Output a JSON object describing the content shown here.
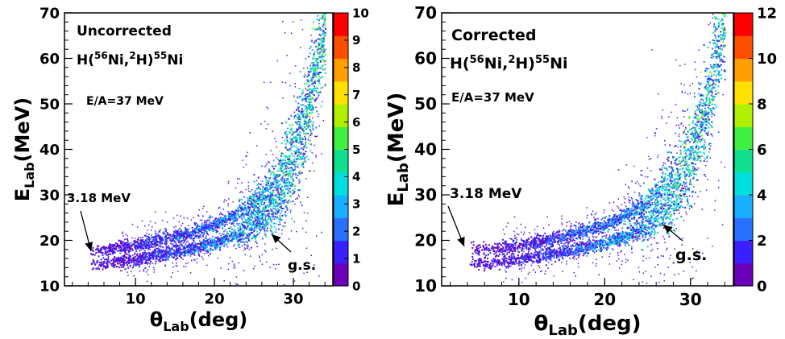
{
  "chart_data": [
    {
      "type": "heatmap",
      "title": "",
      "xlabel": "θLab(deg)",
      "ylabel": "ELab(MeV)",
      "xlabel_parts": {
        "main": "θ",
        "sub": "Lab",
        "rest": "(deg)"
      },
      "ylabel_parts": {
        "main": "E",
        "sub": "Lab",
        "rest": "(MeV)"
      },
      "xlim": [
        1,
        35
      ],
      "ylim": [
        10,
        70
      ],
      "x_ticks": [
        10,
        20,
        30
      ],
      "y_ticks": [
        10,
        20,
        30,
        40,
        50,
        60,
        70
      ],
      "zlim": [
        0,
        10
      ],
      "z_ticks": [
        0,
        1,
        2,
        3,
        4,
        5,
        6,
        7,
        8,
        9,
        10
      ],
      "label": "Uncorrected",
      "reaction": {
        "pre": "H(",
        "m1": "56",
        "t1": "Ni,",
        "m2": "2",
        "t2": "H)",
        "m3": "55",
        "t3": "Ni"
      },
      "energy_label": "E/A=37 MeV",
      "annotations": [
        {
          "text": "3.18 MeV",
          "at_x": 4.5,
          "at_y": 18.5
        },
        {
          "text": "g.s.",
          "at_x": 26.5,
          "at_y": 21.5
        }
      ],
      "bands": [
        {
          "name": "",
          "points": [
            [
              5,
              15
            ],
            [
              10,
              16
            ],
            [
              15,
              17.5
            ],
            [
              20,
              19.5
            ],
            [
              25,
              23
            ],
            [
              28,
              28
            ],
            [
              30,
              36
            ],
            [
              32,
              48
            ],
            [
              33.5,
              62
            ]
          ]
        },
        {
          "name": "",
          "points": [
            [
              5,
              18
            ],
            [
              10,
              19
            ],
            [
              15,
              21
            ],
            [
              20,
              23.5
            ],
            [
              25,
              28
            ],
            [
              28,
              34
            ],
            [
              30,
              42
            ],
            [
              32,
              53
            ],
            [
              33.5,
              66
            ]
          ]
        }
      ],
      "grid": false
    },
    {
      "type": "heatmap",
      "title": "",
      "xlabel": "θLab(deg)",
      "ylabel": "ELab(MeV)",
      "xlabel_parts": {
        "main": "θ",
        "sub": "Lab",
        "rest": "(deg)"
      },
      "ylabel_parts": {
        "main": "E",
        "sub": "Lab",
        "rest": "(MeV)"
      },
      "xlim": [
        1,
        35
      ],
      "ylim": [
        10,
        70
      ],
      "x_ticks": [
        10,
        20,
        30
      ],
      "y_ticks": [
        10,
        20,
        30,
        40,
        50,
        60,
        70
      ],
      "zlim": [
        0,
        12
      ],
      "z_ticks": [
        0,
        2,
        4,
        6,
        8,
        10,
        12
      ],
      "label": "Corrected",
      "reaction": {
        "pre": "H(",
        "m1": "56",
        "t1": "Ni,",
        "m2": "2",
        "t2": "H)",
        "m3": "55",
        "t3": "Ni"
      },
      "energy_label": "E/A=37 MeV",
      "annotations": [
        {
          "text": "3.18 MeV",
          "at_x": 4.5,
          "at_y": 18.5
        },
        {
          "text": "g.s.",
          "at_x": 26.5,
          "at_y": 21.5
        }
      ],
      "bands": [
        {
          "name": "",
          "points": [
            [
              5,
              15
            ],
            [
              10,
              16
            ],
            [
              15,
              17.5
            ],
            [
              20,
              19.5
            ],
            [
              25,
              23
            ],
            [
              28,
              28
            ],
            [
              30,
              36
            ],
            [
              32,
              48
            ],
            [
              33.5,
              62
            ]
          ]
        },
        {
          "name": "",
          "points": [
            [
              5,
              18
            ],
            [
              10,
              19
            ],
            [
              15,
              21
            ],
            [
              20,
              23.5
            ],
            [
              25,
              28
            ],
            [
              28,
              34
            ],
            [
              30,
              42
            ],
            [
              32,
              53
            ],
            [
              33.5,
              66
            ]
          ]
        }
      ],
      "grid": false
    }
  ],
  "colors": {
    "palette": [
      "#6a00b8",
      "#3a20ff",
      "#2a70ff",
      "#18b0ff",
      "#00e0e0",
      "#10e090",
      "#40f040",
      "#b0f000",
      "#ffe000",
      "#ffa000",
      "#ff5000",
      "#ff0000"
    ]
  }
}
